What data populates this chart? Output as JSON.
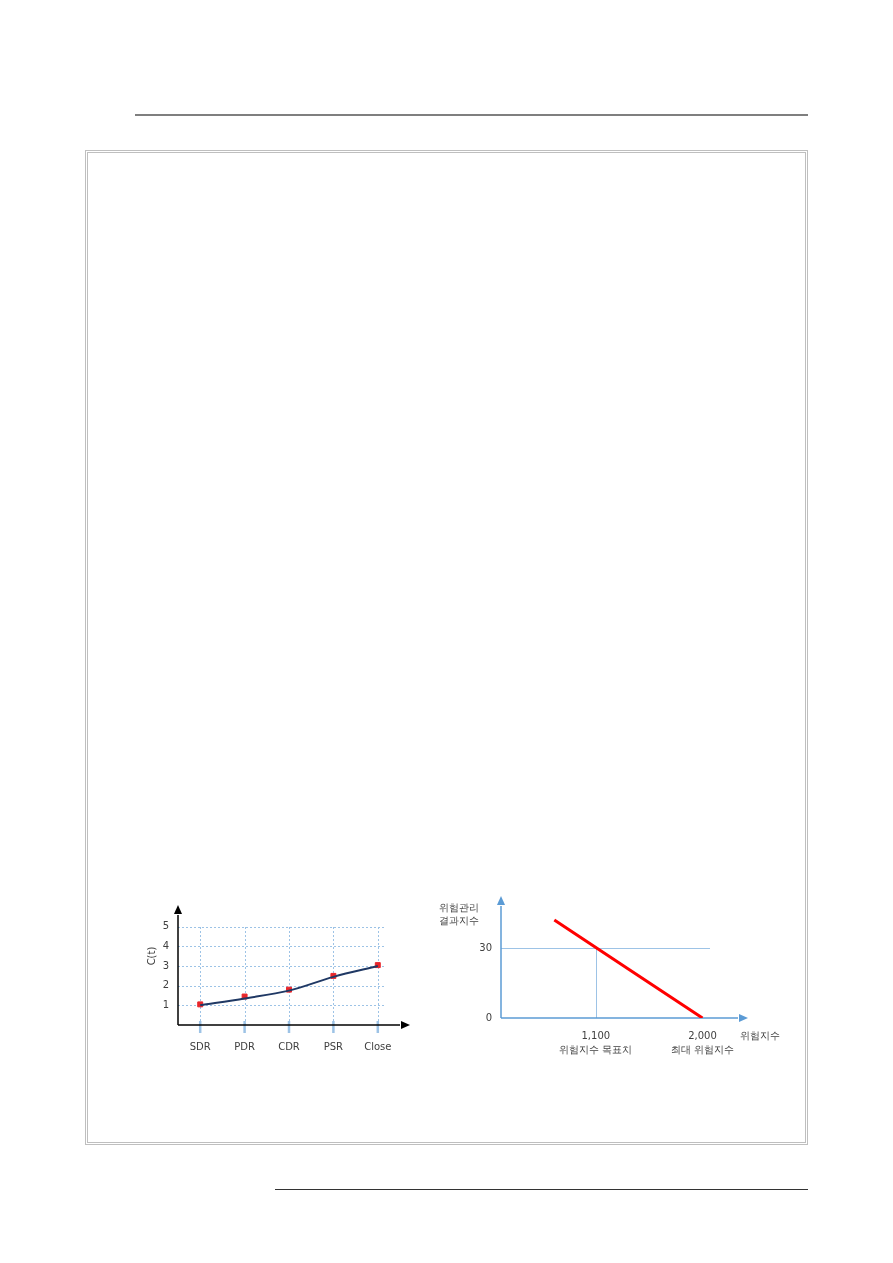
{
  "chart_data": [
    {
      "type": "line",
      "ylabel": "C(t)",
      "categories": [
        "SDR",
        "PDR",
        "CDR",
        "PSR",
        "Close"
      ],
      "series": [
        {
          "type": "line",
          "color": "#1f3864",
          "values": [
            1.0,
            1.35,
            1.75,
            2.45,
            3.0
          ]
        },
        {
          "type": "scatter",
          "color": "#e8262b",
          "marker": "square",
          "values": [
            1.05,
            1.45,
            1.8,
            2.5,
            3.05
          ]
        }
      ],
      "ylim": [
        0,
        5.6
      ],
      "yticks": [
        1,
        2,
        3,
        4,
        5
      ],
      "grid": true
    },
    {
      "type": "line",
      "xlabel": "위험지수",
      "ylabel": "위험관리 결과지수",
      "x": [
        750,
        2000
      ],
      "series": [
        {
          "color": "#ff0000",
          "values": [
            42,
            0
          ]
        }
      ],
      "xlim": [
        300,
        2300
      ],
      "xticks": [
        {
          "value": 1100,
          "label": "1,100"
        },
        {
          "value": 2000,
          "label": "2,000"
        }
      ],
      "ylim": [
        0,
        48
      ],
      "yticks": [
        0,
        30
      ],
      "ref_lines": [
        {
          "axis": "y",
          "value": 30,
          "color": "#9dc3e6"
        },
        {
          "axis": "x",
          "value": 1100,
          "color": "#9dc3e6"
        }
      ],
      "annotations": [
        "위험지수 목표치",
        "최대 위험지수"
      ]
    }
  ]
}
